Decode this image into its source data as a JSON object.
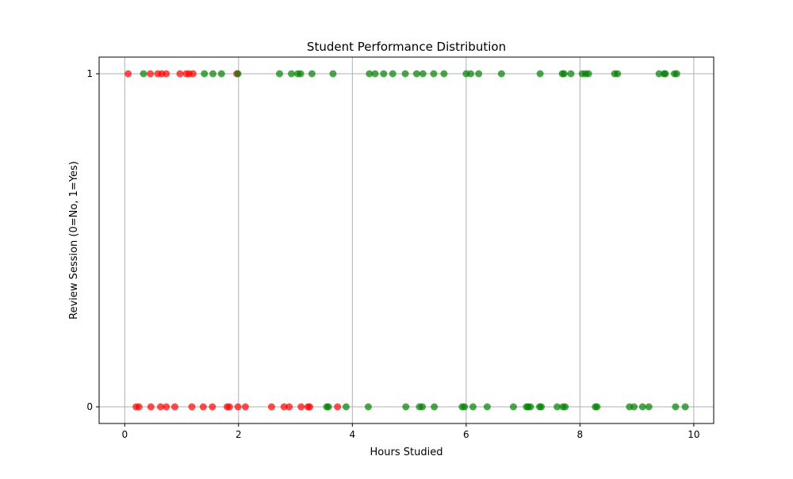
{
  "chart_data": {
    "type": "scatter",
    "title": "Student Performance Distribution",
    "xlabel": "Hours Studied",
    "ylabel": "Review Session (0=No, 1=Yes)",
    "xlim": [
      -0.45,
      10.35
    ],
    "ylim": [
      -0.05,
      1.05
    ],
    "xticks": [
      0,
      2,
      4,
      6,
      8,
      10
    ],
    "yticks": [
      0,
      1
    ],
    "grid": true,
    "colors": {
      "fail": "#ff0000",
      "pass": "#008000"
    },
    "series": [
      {
        "color_key": "fail",
        "points": [
          [
            0.06,
            1
          ],
          [
            0.45,
            1
          ],
          [
            0.58,
            1
          ],
          [
            0.65,
            1
          ],
          [
            0.73,
            1
          ],
          [
            0.97,
            1
          ],
          [
            1.08,
            1
          ],
          [
            1.13,
            1
          ],
          [
            1.2,
            1
          ],
          [
            1.97,
            1
          ],
          [
            0.2,
            0
          ],
          [
            0.25,
            0
          ],
          [
            0.46,
            0
          ],
          [
            0.63,
            0
          ],
          [
            0.73,
            0
          ],
          [
            0.88,
            0
          ],
          [
            1.18,
            0
          ],
          [
            1.38,
            0
          ],
          [
            1.54,
            0
          ],
          [
            1.8,
            0
          ],
          [
            1.84,
            0
          ],
          [
            1.99,
            0
          ],
          [
            2.12,
            0
          ],
          [
            2.58,
            0
          ],
          [
            2.8,
            0
          ],
          [
            2.89,
            0
          ],
          [
            3.1,
            0
          ],
          [
            3.22,
            0
          ],
          [
            3.25,
            0
          ],
          [
            3.74,
            0
          ]
        ]
      },
      {
        "color_key": "pass",
        "points": [
          [
            0.33,
            1
          ],
          [
            1.4,
            1
          ],
          [
            1.55,
            1
          ],
          [
            1.7,
            1
          ],
          [
            1.99,
            1
          ],
          [
            2.72,
            1
          ],
          [
            2.93,
            1
          ],
          [
            3.04,
            1
          ],
          [
            3.09,
            1
          ],
          [
            3.29,
            1
          ],
          [
            3.66,
            1
          ],
          [
            4.3,
            1
          ],
          [
            4.4,
            1
          ],
          [
            4.55,
            1
          ],
          [
            4.71,
            1
          ],
          [
            4.93,
            1
          ],
          [
            5.13,
            1
          ],
          [
            5.24,
            1
          ],
          [
            5.43,
            1
          ],
          [
            5.61,
            1
          ],
          [
            6.0,
            1
          ],
          [
            6.08,
            1
          ],
          [
            6.22,
            1
          ],
          [
            6.62,
            1
          ],
          [
            7.3,
            1
          ],
          [
            7.69,
            1
          ],
          [
            7.72,
            1
          ],
          [
            7.84,
            1
          ],
          [
            8.04,
            1
          ],
          [
            8.1,
            1
          ],
          [
            8.15,
            1
          ],
          [
            8.61,
            1
          ],
          [
            8.66,
            1
          ],
          [
            9.39,
            1
          ],
          [
            9.48,
            1
          ],
          [
            9.5,
            1
          ],
          [
            9.66,
            1
          ],
          [
            9.7,
            1
          ],
          [
            3.55,
            0
          ],
          [
            3.58,
            0
          ],
          [
            3.89,
            0
          ],
          [
            4.28,
            0
          ],
          [
            4.94,
            0
          ],
          [
            5.18,
            0
          ],
          [
            5.23,
            0
          ],
          [
            5.44,
            0
          ],
          [
            5.93,
            0
          ],
          [
            5.97,
            0
          ],
          [
            6.12,
            0
          ],
          [
            6.37,
            0
          ],
          [
            6.83,
            0
          ],
          [
            7.06,
            0
          ],
          [
            7.09,
            0
          ],
          [
            7.13,
            0
          ],
          [
            7.29,
            0
          ],
          [
            7.32,
            0
          ],
          [
            7.6,
            0
          ],
          [
            7.7,
            0
          ],
          [
            7.74,
            0
          ],
          [
            8.27,
            0
          ],
          [
            8.3,
            0
          ],
          [
            8.87,
            0
          ],
          [
            8.95,
            0
          ],
          [
            9.1,
            0
          ],
          [
            9.21,
            0
          ],
          [
            9.68,
            0
          ],
          [
            9.85,
            0
          ]
        ]
      }
    ]
  }
}
